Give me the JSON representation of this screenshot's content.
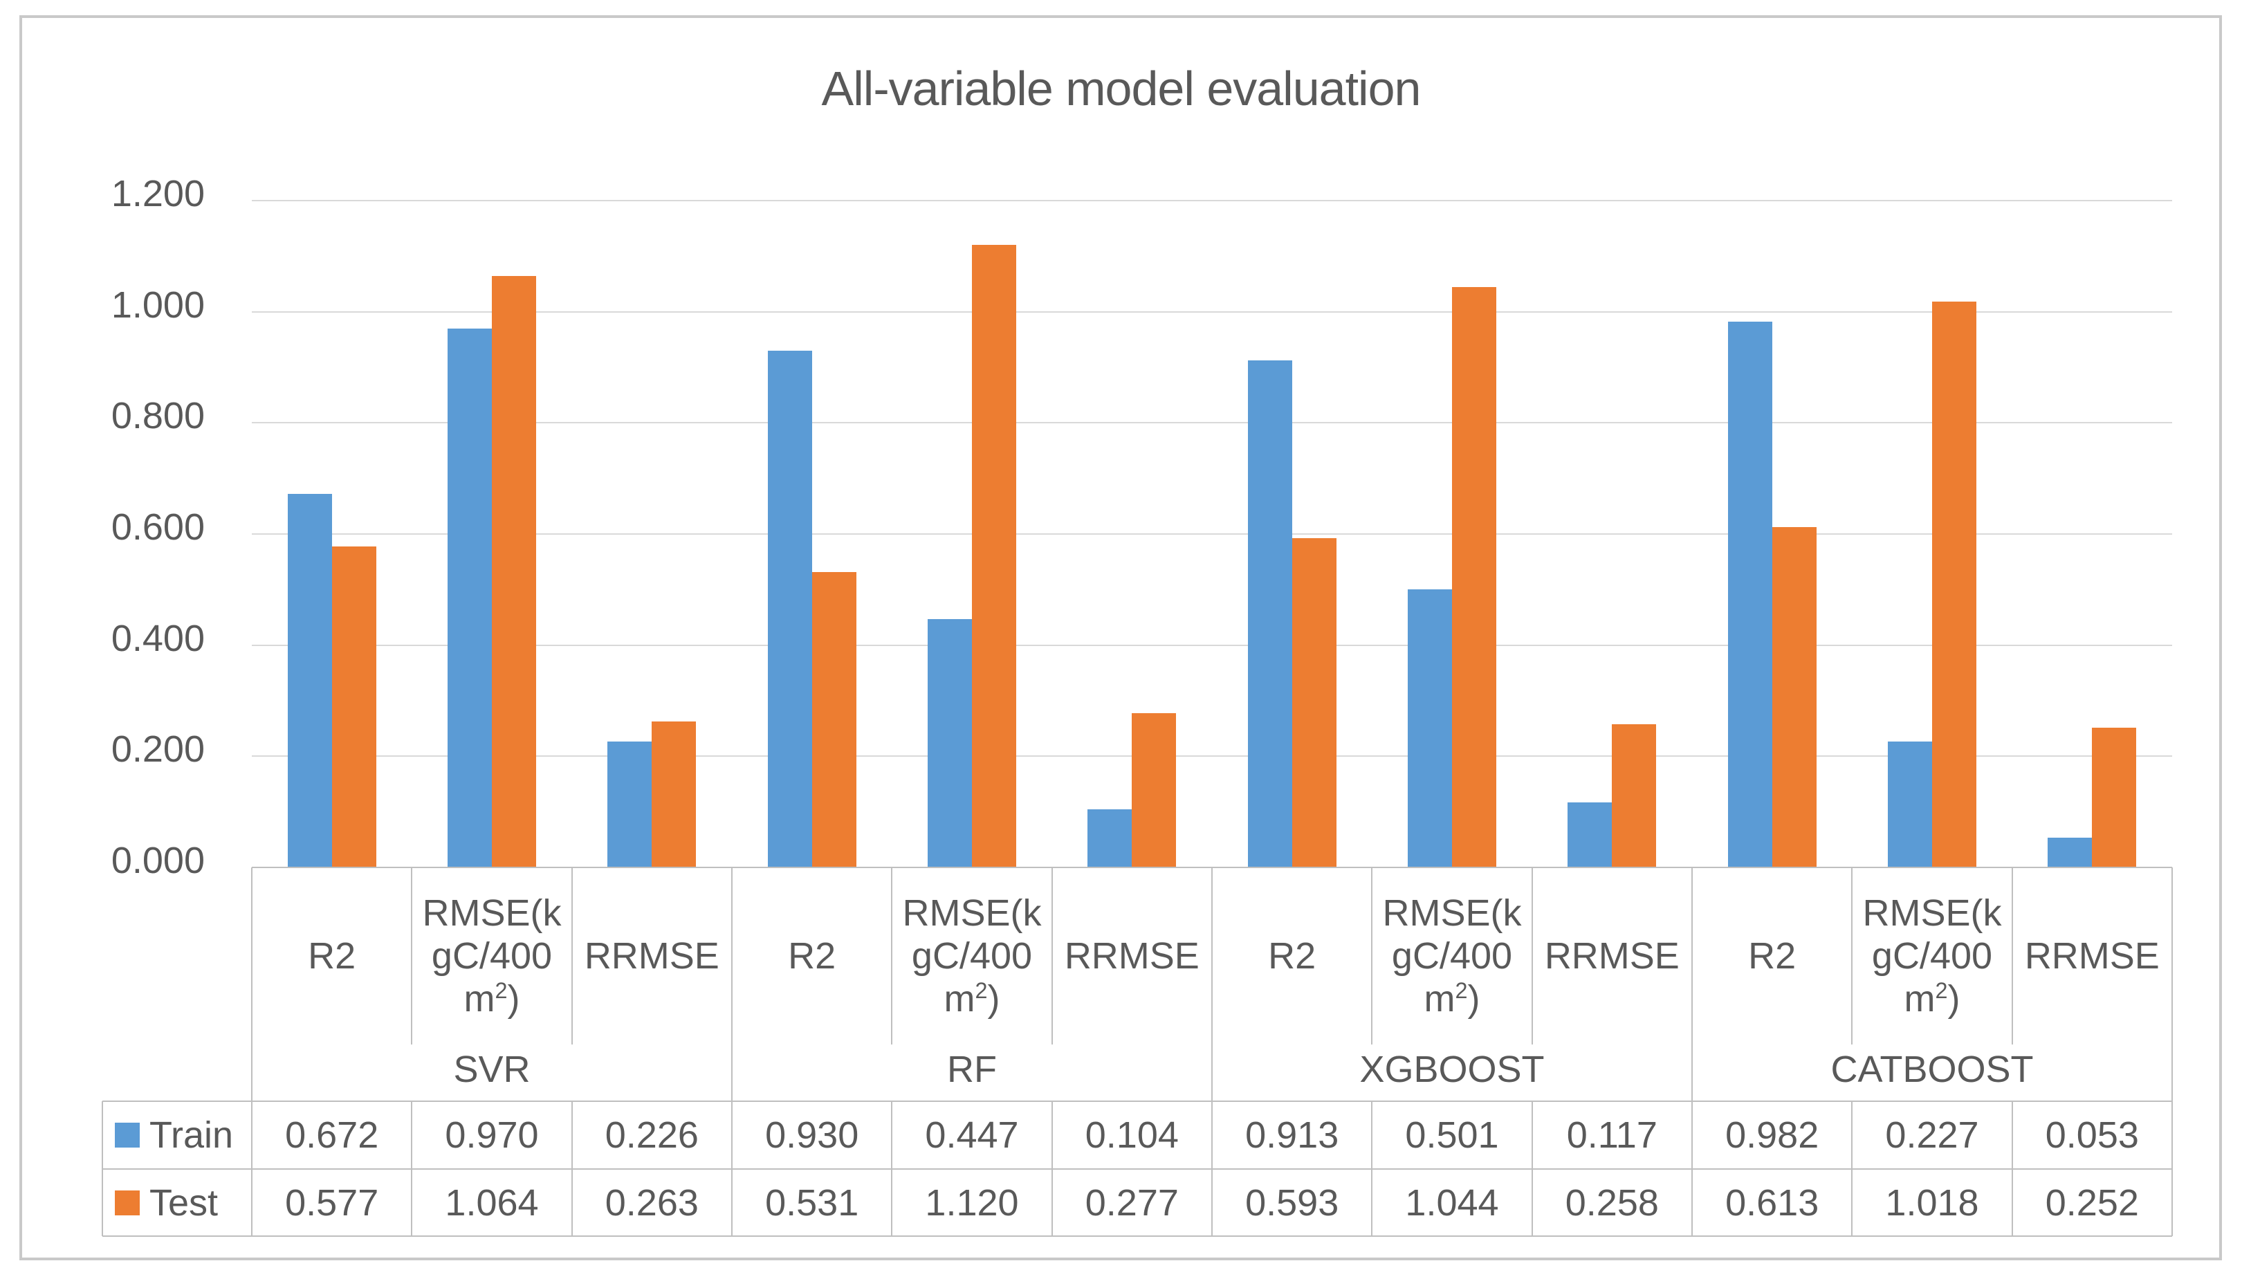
{
  "chart_data": {
    "type": "bar",
    "title": "All-variable model evaluation",
    "groups": [
      "SVR",
      "RF",
      "XGBOOST",
      "CATBOOST"
    ],
    "metrics": [
      "R2",
      "RMSE(kgC/400 m2)",
      "RRMSE"
    ],
    "metric_header_lines": [
      [
        [
          "R2"
        ]
      ],
      [
        [
          "RMSE(k"
        ],
        [
          "gC/400"
        ],
        [
          "m",
          {
            "sup": "2"
          },
          ")"
        ]
      ],
      [
        [
          "RRMSE"
        ]
      ]
    ],
    "categories": [
      "SVR R2",
      "SVR RMSE(kgC/400 m2)",
      "SVR RRMSE",
      "RF R2",
      "RF RMSE(kgC/400 m2)",
      "RF RRMSE",
      "XGBOOST R2",
      "XGBOOST RMSE(kgC/400 m2)",
      "XGBOOST RRMSE",
      "CATBOOST R2",
      "CATBOOST RMSE(kgC/400 m2)",
      "CATBOOST RRMSE"
    ],
    "series": [
      {
        "name": "Train",
        "color": "#5B9BD5",
        "values": [
          0.672,
          0.97,
          0.226,
          0.93,
          0.447,
          0.104,
          0.913,
          0.501,
          0.117,
          0.982,
          0.227,
          0.053
        ]
      },
      {
        "name": "Test",
        "color": "#ED7D31",
        "values": [
          0.577,
          1.064,
          0.263,
          0.531,
          1.12,
          0.277,
          0.593,
          1.044,
          0.258,
          0.613,
          1.018,
          0.252
        ]
      }
    ],
    "y_axis": {
      "min": 0.0,
      "max": 1.2,
      "step": 0.2,
      "tick_labels": [
        "1.200",
        "1.000",
        "0.800",
        "0.600",
        "0.400",
        "0.200",
        "0.000"
      ],
      "grid": true
    },
    "legend_position": "left-of-data-table",
    "colors": {
      "grid": "#D9D9D9",
      "table_border": "#BFBFBF",
      "text": "#595959",
      "frame": "#C9C9C9",
      "background": "#FFFFFF"
    }
  }
}
